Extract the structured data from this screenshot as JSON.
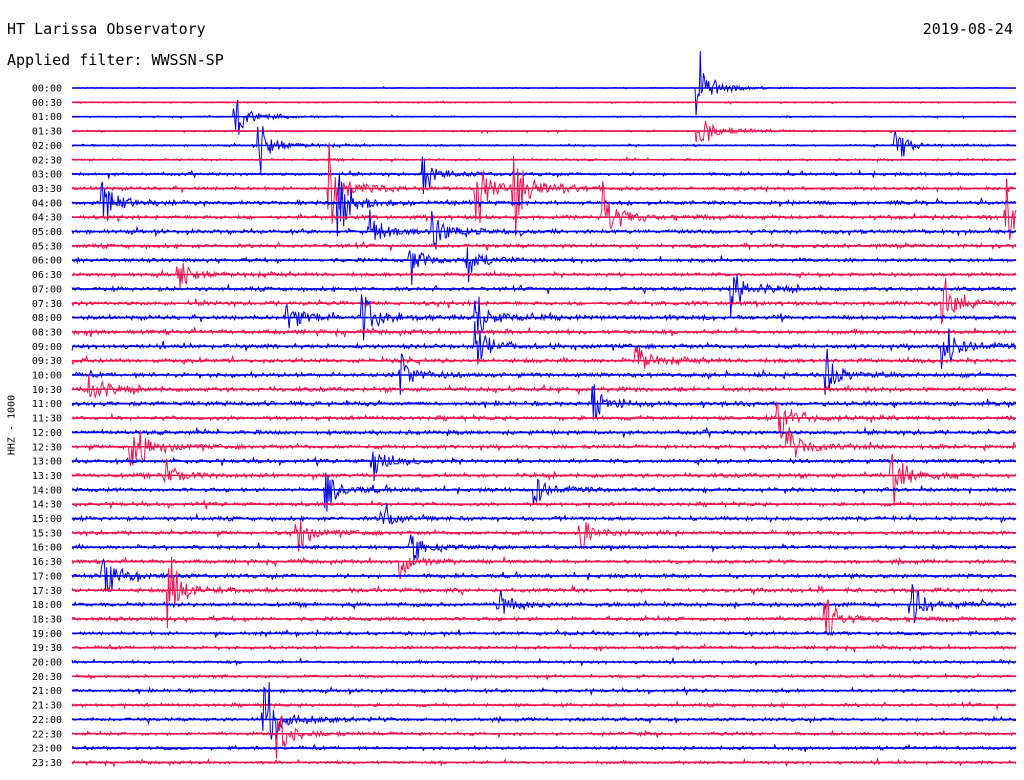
{
  "header": {
    "title": "HT Larissa Observatory",
    "date": "2019-08-24",
    "filter_label": "Applied filter: WWSSN-SP"
  },
  "chart_data": {
    "type": "line",
    "title": "HT Larissa Observatory",
    "date": "2019-08-24",
    "filter": "WWSSN-SP",
    "ylabel": "HHZ - 1000",
    "colors": [
      "#0000ee",
      "#ee1450"
    ],
    "row_labels": [
      "00:00",
      "00:30",
      "01:00",
      "01:30",
      "02:00",
      "02:30",
      "03:00",
      "03:30",
      "04:00",
      "04:30",
      "05:00",
      "05:30",
      "06:00",
      "06:30",
      "07:00",
      "07:30",
      "08:00",
      "08:30",
      "09:00",
      "09:30",
      "10:00",
      "10:30",
      "11:00",
      "11:30",
      "12:00",
      "12:30",
      "13:00",
      "13:30",
      "14:00",
      "14:30",
      "15:00",
      "15:30",
      "16:00",
      "16:30",
      "17:00",
      "17:30",
      "18:00",
      "18:30",
      "19:00",
      "19:30",
      "20:00",
      "20:30",
      "21:00",
      "21:30",
      "22:00",
      "22:30",
      "23:00",
      "23:30"
    ],
    "noise_level": [
      0.25,
      0.3,
      0.3,
      0.4,
      0.45,
      0.5,
      0.7,
      0.8,
      0.9,
      0.9,
      0.9,
      0.9,
      0.85,
      0.85,
      0.9,
      0.95,
      1.0,
      1.0,
      1.0,
      0.95,
      1.0,
      1.0,
      1.0,
      0.95,
      0.95,
      0.9,
      0.9,
      0.95,
      0.9,
      0.85,
      0.9,
      0.85,
      0.85,
      0.85,
      0.9,
      0.95,
      0.95,
      0.9,
      0.8,
      0.75,
      0.7,
      0.7,
      0.75,
      0.75,
      0.8,
      0.75,
      0.75,
      0.7
    ],
    "events": [
      {
        "row": 0,
        "pos": 0.665,
        "amp": 1.6
      },
      {
        "row": 2,
        "pos": 0.175,
        "amp": 1.2
      },
      {
        "row": 3,
        "pos": 0.665,
        "amp": 1.4
      },
      {
        "row": 4,
        "pos": 0.2,
        "amp": 1.2
      },
      {
        "row": 4,
        "pos": 0.875,
        "amp": 0.8
      },
      {
        "row": 6,
        "pos": 0.375,
        "amp": 1.0
      },
      {
        "row": 7,
        "pos": 0.275,
        "amp": 2.2
      },
      {
        "row": 7,
        "pos": 0.43,
        "amp": 1.8
      },
      {
        "row": 7,
        "pos": 0.47,
        "amp": 2.0
      },
      {
        "row": 8,
        "pos": 0.035,
        "amp": 1.4
      },
      {
        "row": 8,
        "pos": 0.285,
        "amp": 1.8
      },
      {
        "row": 9,
        "pos": 0.565,
        "amp": 1.8
      },
      {
        "row": 9,
        "pos": 0.99,
        "amp": 1.6
      },
      {
        "row": 10,
        "pos": 0.315,
        "amp": 1.2
      },
      {
        "row": 10,
        "pos": 0.385,
        "amp": 1.0
      },
      {
        "row": 12,
        "pos": 0.36,
        "amp": 1.2
      },
      {
        "row": 12,
        "pos": 0.42,
        "amp": 1.0
      },
      {
        "row": 13,
        "pos": 0.115,
        "amp": 0.8
      },
      {
        "row": 14,
        "pos": 0.7,
        "amp": 1.6
      },
      {
        "row": 15,
        "pos": 0.925,
        "amp": 1.2
      },
      {
        "row": 16,
        "pos": 0.23,
        "amp": 1.2
      },
      {
        "row": 16,
        "pos": 0.31,
        "amp": 1.4
      },
      {
        "row": 16,
        "pos": 0.43,
        "amp": 1.0
      },
      {
        "row": 18,
        "pos": 0.43,
        "amp": 1.2
      },
      {
        "row": 18,
        "pos": 0.925,
        "amp": 1.4
      },
      {
        "row": 19,
        "pos": 0.6,
        "amp": 1.0
      },
      {
        "row": 20,
        "pos": 0.35,
        "amp": 1.0
      },
      {
        "row": 20,
        "pos": 0.8,
        "amp": 1.2
      },
      {
        "row": 21,
        "pos": 0.02,
        "amp": 1.2
      },
      {
        "row": 22,
        "pos": 0.555,
        "amp": 1.0
      },
      {
        "row": 23,
        "pos": 0.75,
        "amp": 1.2
      },
      {
        "row": 25,
        "pos": 0.065,
        "amp": 1.8
      },
      {
        "row": 25,
        "pos": 0.76,
        "amp": 1.2
      },
      {
        "row": 26,
        "pos": 0.32,
        "amp": 1.0
      },
      {
        "row": 27,
        "pos": 0.1,
        "amp": 0.8
      },
      {
        "row": 27,
        "pos": 0.87,
        "amp": 1.4
      },
      {
        "row": 28,
        "pos": 0.27,
        "amp": 1.2
      },
      {
        "row": 28,
        "pos": 0.49,
        "amp": 1.0
      },
      {
        "row": 30,
        "pos": 0.33,
        "amp": 1.0
      },
      {
        "row": 31,
        "pos": 0.24,
        "amp": 1.0
      },
      {
        "row": 31,
        "pos": 0.54,
        "amp": 1.0
      },
      {
        "row": 32,
        "pos": 0.36,
        "amp": 1.0
      },
      {
        "row": 33,
        "pos": 0.35,
        "amp": 0.8
      },
      {
        "row": 34,
        "pos": 0.035,
        "amp": 1.2
      },
      {
        "row": 35,
        "pos": 0.105,
        "amp": 1.8
      },
      {
        "row": 36,
        "pos": 0.45,
        "amp": 1.0
      },
      {
        "row": 36,
        "pos": 0.89,
        "amp": 1.2
      },
      {
        "row": 37,
        "pos": 0.8,
        "amp": 1.2
      },
      {
        "row": 44,
        "pos": 0.205,
        "amp": 2.6
      },
      {
        "row": 45,
        "pos": 0.22,
        "amp": 1.2
      }
    ]
  }
}
